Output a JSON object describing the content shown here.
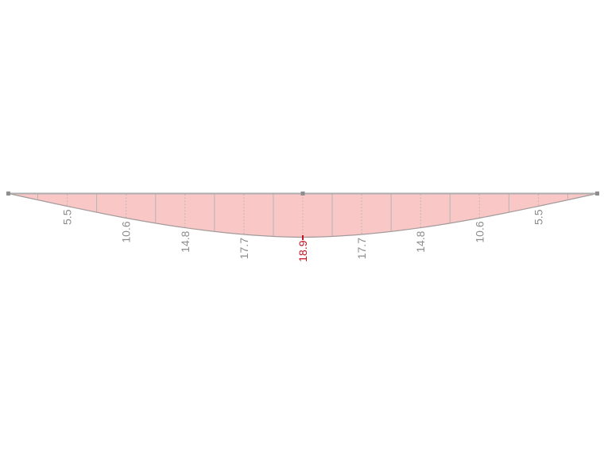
{
  "chart_data": {
    "type": "area",
    "description": "Beam result diagram (bending-moment style envelope) plotted downward from a horizontal member between two end nodes",
    "x_rel": [
      0,
      0.1,
      0.2,
      0.3,
      0.4,
      0.5,
      0.6,
      0.7,
      0.8,
      0.9,
      1.0
    ],
    "values": [
      0,
      5.5,
      10.6,
      14.8,
      17.7,
      18.9,
      17.7,
      14.8,
      10.6,
      5.5,
      0
    ],
    "value_labels": [
      "5.5",
      "10.6",
      "14.8",
      "17.7",
      "18.9",
      "17.7",
      "14.8",
      "10.6",
      "5.5"
    ],
    "max": {
      "value": 18.9,
      "label": "18.9",
      "position_rel": 0.5
    },
    "divisions": 20,
    "labeled_every_nth_division": 2,
    "grid": "off",
    "legend": "none",
    "axis_orientation": "positive values drawn downward from beam axis"
  },
  "colors": {
    "background": "#ffffff",
    "fill": "#fac7c7",
    "curve_stroke": "#a39b9b",
    "beam_line": "#adadad",
    "division_line": "#b5b5b5",
    "node_marker": "#8e8e8e",
    "label_text": "#8c8c8c",
    "max_text": "#c11322"
  }
}
